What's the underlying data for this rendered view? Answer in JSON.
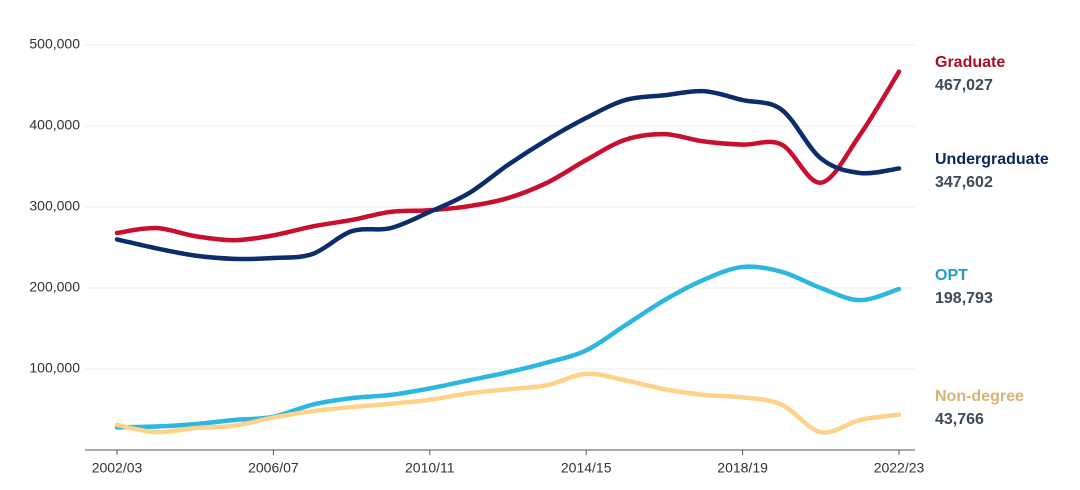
{
  "chart_data": {
    "type": "line",
    "categories": [
      "2002/03",
      null,
      null,
      null,
      "2006/07",
      null,
      null,
      null,
      "2010/11",
      null,
      null,
      null,
      "2014/15",
      null,
      null,
      null,
      "2018/19",
      null,
      null,
      null,
      "2022/23"
    ],
    "ylim": [
      0,
      500000
    ],
    "yticks": [
      {
        "value": 100000,
        "label": "100,000"
      },
      {
        "value": 200000,
        "label": "200,000"
      },
      {
        "value": 300000,
        "label": "300,000"
      },
      {
        "value": 400000,
        "label": "400,000"
      },
      {
        "value": 500000,
        "label": "500,000"
      }
    ],
    "grid": true,
    "series": [
      {
        "name": "Graduate",
        "color": "#c8102e",
        "values": [
          268000,
          274000,
          264000,
          259000,
          265000,
          276000,
          284000,
          294000,
          296000,
          301000,
          311000,
          330000,
          358000,
          383000,
          390000,
          381000,
          377000,
          377000,
          330000,
          389000,
          467027
        ],
        "value_labels": [
          null,
          null,
          null,
          null,
          null,
          null,
          null,
          null,
          null,
          null,
          null,
          null,
          null,
          null,
          null,
          null,
          null,
          null,
          null,
          null,
          "467,027"
        ]
      },
      {
        "name": "Undergraduate",
        "color": "#0c2d6b",
        "values": [
          260000,
          249000,
          240000,
          236000,
          237000,
          242000,
          270000,
          274000,
          294000,
          317000,
          352000,
          383000,
          410000,
          432000,
          438000,
          443000,
          432000,
          420000,
          360000,
          342000,
          347602
        ],
        "value_labels": [
          null,
          null,
          null,
          null,
          null,
          null,
          null,
          null,
          null,
          null,
          null,
          null,
          null,
          null,
          null,
          null,
          null,
          null,
          null,
          null,
          "347,602"
        ]
      },
      {
        "name": "OPT",
        "color": "#2bb7e0",
        "values": [
          28000,
          29000,
          32000,
          37000,
          41000,
          56000,
          64000,
          68000,
          76000,
          86000,
          96000,
          108000,
          123000,
          154000,
          185000,
          210000,
          226000,
          220000,
          200000,
          185000,
          198793
        ],
        "value_labels": [
          null,
          null,
          null,
          null,
          null,
          null,
          null,
          null,
          null,
          null,
          null,
          null,
          null,
          null,
          null,
          null,
          null,
          null,
          null,
          null,
          "198,793"
        ]
      },
      {
        "name": "Non-degree",
        "color": "#fdd38a",
        "values": [
          31000,
          22000,
          27000,
          30000,
          40000,
          48000,
          53000,
          57000,
          62000,
          70000,
          75000,
          80000,
          94000,
          86000,
          75000,
          68000,
          65000,
          56000,
          22000,
          37000,
          43766
        ],
        "value_labels": [
          null,
          null,
          null,
          null,
          null,
          null,
          null,
          null,
          null,
          null,
          null,
          null,
          null,
          null,
          null,
          null,
          null,
          null,
          null,
          null,
          "43,766"
        ]
      }
    ]
  }
}
